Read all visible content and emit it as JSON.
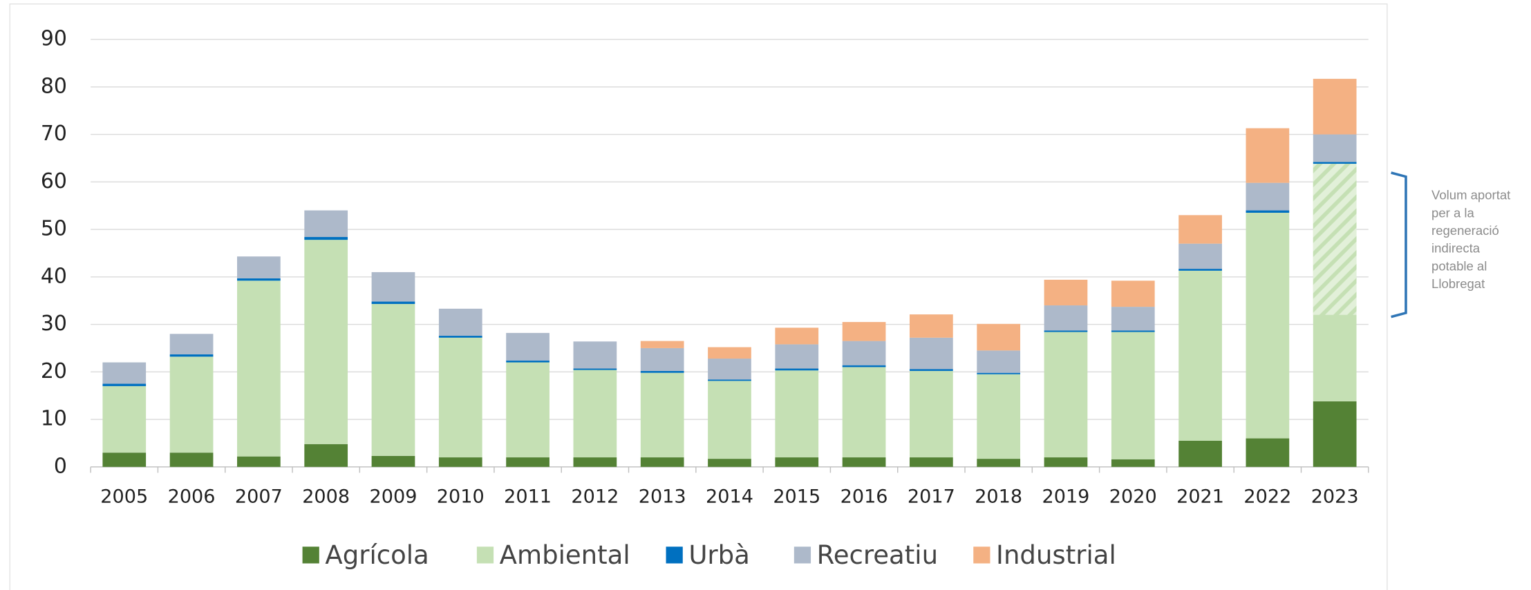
{
  "chart_data": {
    "type": "stacked_bar",
    "categories": [
      "2005",
      "2006",
      "2007",
      "2008",
      "2009",
      "2010",
      "2011",
      "2012",
      "2013",
      "2014",
      "2015",
      "2016",
      "2017",
      "2018",
      "2019",
      "2020",
      "2021",
      "2022",
      "2023"
    ],
    "series": [
      {
        "name": "Agrícola",
        "color": "#548235",
        "values": [
          3,
          3,
          2.2,
          4.8,
          2.3,
          2,
          2,
          2,
          2,
          1.7,
          2,
          2,
          2,
          1.7,
          2,
          1.6,
          5.5,
          6,
          13.8
        ]
      },
      {
        "name": "Ambiental",
        "color": "#c5e0b4",
        "values": [
          14,
          20.2,
          37,
          43,
          32,
          25.2,
          20,
          18.4,
          17.8,
          16.4,
          18.3,
          19,
          18.2,
          17.8,
          26.4,
          26.8,
          35.8,
          47.5,
          50
        ]
      },
      {
        "name": "Urbà",
        "color": "#0070c0",
        "values": [
          0.5,
          0.5,
          0.5,
          0.6,
          0.5,
          0.4,
          0.4,
          0.3,
          0.4,
          0.3,
          0.4,
          0.4,
          0.4,
          0.3,
          0.3,
          0.3,
          0.4,
          0.5,
          0.4
        ]
      },
      {
        "name": "Recreatiu",
        "color": "#adb9ca",
        "values": [
          4.5,
          4.3,
          4.6,
          5.6,
          6.2,
          5.7,
          5.8,
          5.7,
          4.8,
          4.4,
          5.1,
          5.1,
          6.6,
          4.7,
          5.3,
          5,
          5.3,
          5.8,
          5.8
        ]
      },
      {
        "name": "Industrial",
        "color": "#f4b183",
        "values": [
          0,
          0,
          0,
          0,
          0,
          0,
          0,
          0,
          1.5,
          2.4,
          3.5,
          4,
          4.9,
          5.6,
          5.4,
          5.5,
          6,
          11.5,
          11.7
        ]
      }
    ],
    "ylim": [
      0,
      90
    ],
    "yticks": [
      0,
      10,
      20,
      30,
      40,
      50,
      60,
      70,
      80,
      90
    ],
    "grid": true,
    "annotation": {
      "lines": [
        "Volum aportat",
        "per a la",
        "regeneració",
        "indirecta",
        "potable al",
        "Llobregat"
      ],
      "category": "2023",
      "from": 32,
      "to": 63.8
    }
  }
}
